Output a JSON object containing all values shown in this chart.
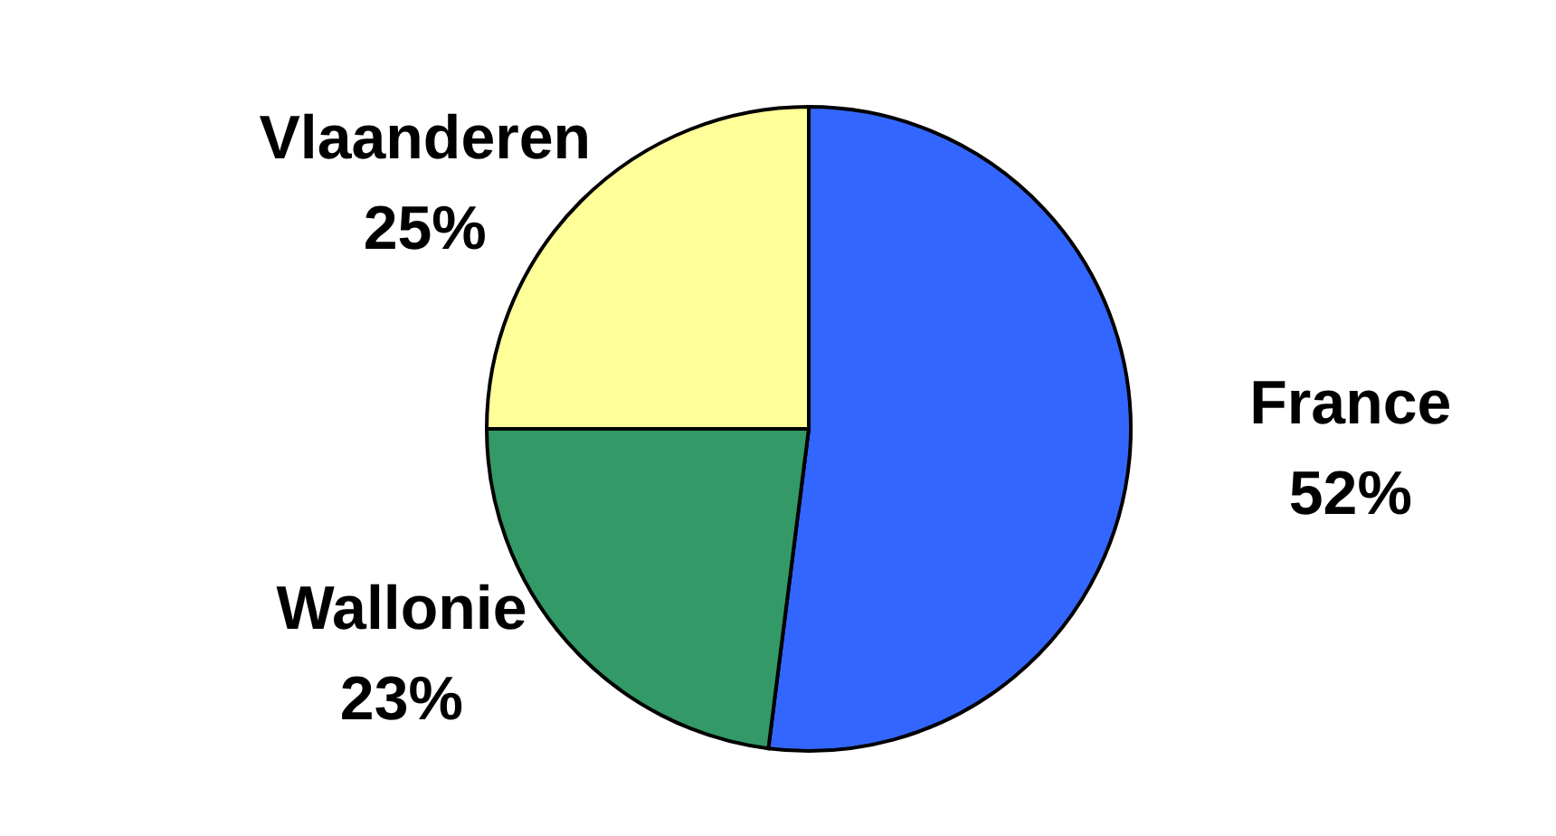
{
  "chart_data": {
    "type": "pie",
    "categories": [
      "France",
      "Wallonie",
      "Vlaanderen"
    ],
    "values": [
      52,
      23,
      25
    ],
    "colors": [
      "#3366ff",
      "#339966",
      "#ffff99"
    ],
    "value_labels": [
      "52%",
      "23%",
      "25%"
    ]
  }
}
